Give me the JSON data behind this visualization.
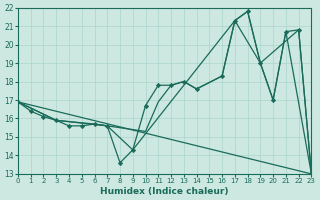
{
  "xlabel": "Humidex (Indice chaleur)",
  "bg_color": "#cce8e0",
  "grid_color": "#aad4cc",
  "line_color": "#1a6b5a",
  "xlim": [
    0,
    23
  ],
  "ylim": [
    13,
    22
  ],
  "xticks": [
    0,
    1,
    2,
    3,
    4,
    5,
    6,
    7,
    8,
    9,
    10,
    11,
    12,
    13,
    14,
    15,
    16,
    17,
    18,
    19,
    20,
    21,
    22,
    23
  ],
  "yticks": [
    13,
    14,
    15,
    16,
    17,
    18,
    19,
    20,
    21,
    22
  ],
  "line1_x": [
    0,
    1,
    2,
    3,
    4,
    5,
    6,
    7,
    8,
    9,
    10,
    11,
    12,
    13,
    14,
    16,
    17,
    18,
    19,
    20,
    21,
    22,
    23
  ],
  "line1_y": [
    16.9,
    16.4,
    16.1,
    15.9,
    15.6,
    15.6,
    15.7,
    15.6,
    13.6,
    14.3,
    16.7,
    17.8,
    17.8,
    18.0,
    17.6,
    18.3,
    21.3,
    21.8,
    19.0,
    17.0,
    20.7,
    20.8,
    13.0
  ],
  "line2_x": [
    0,
    23
  ],
  "line2_y": [
    16.9,
    13.0
  ],
  "line3_x": [
    0,
    3,
    6,
    10,
    11,
    12,
    13,
    14,
    16,
    17,
    19,
    20,
    21,
    23
  ],
  "line3_y": [
    16.9,
    15.9,
    15.7,
    15.3,
    16.9,
    17.8,
    18.0,
    17.6,
    18.3,
    21.3,
    19.0,
    17.0,
    20.7,
    13.0
  ],
  "line4_x": [
    0,
    3,
    7,
    9,
    17,
    18,
    19,
    22,
    23
  ],
  "line4_y": [
    16.9,
    15.9,
    15.6,
    14.3,
    21.3,
    21.8,
    19.0,
    20.8,
    13.0
  ]
}
